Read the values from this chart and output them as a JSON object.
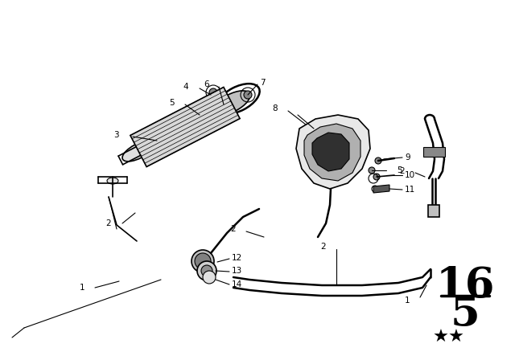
{
  "bg_color": "#ffffff",
  "line_color": "#000000",
  "page_number": "16",
  "page_sub": "5",
  "stars": "★★",
  "figsize": [
    6.4,
    4.48
  ],
  "dpi": 100
}
